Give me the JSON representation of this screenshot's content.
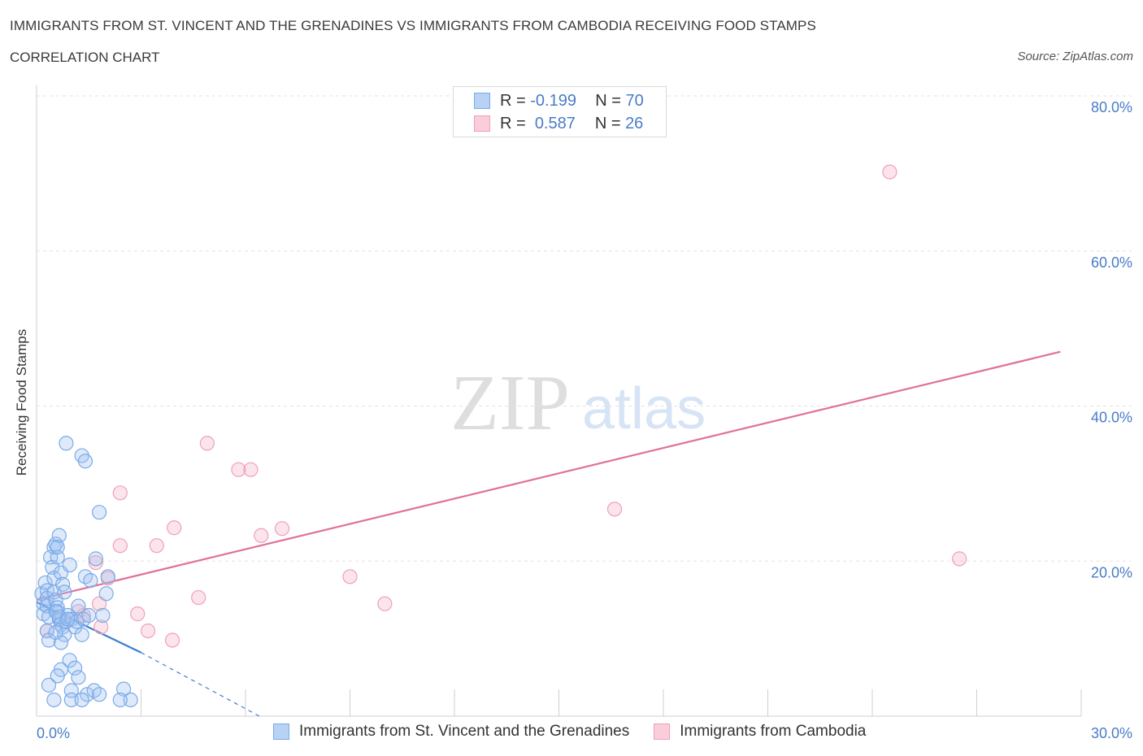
{
  "header": {
    "title": "IMMIGRANTS FROM ST. VINCENT AND THE GRENADINES VS IMMIGRANTS FROM CAMBODIA RECEIVING FOOD STAMPS",
    "subtitle": "CORRELATION CHART",
    "source": "Source: ZipAtlas.com"
  },
  "watermark": {
    "zip": "ZIP",
    "atlas": "atlas"
  },
  "legend": {
    "rows": [
      {
        "r_label": "R =",
        "r_value": "-0.199",
        "n_label": "N =",
        "n_value": "70",
        "color": "#7aaae8"
      },
      {
        "r_label": "R =",
        "r_value": "0.587",
        "n_label": "N =",
        "n_value": "26",
        "color": "#f0a0b8"
      }
    ]
  },
  "bottom_legend": {
    "series1": "Immigrants from St. Vincent and the Grenadines",
    "series2": "Immigrants from Cambodia"
  },
  "chart_data": {
    "type": "scatter",
    "title": "IMMIGRANTS FROM ST. VINCENT AND THE GRENADINES VS IMMIGRANTS FROM CAMBODIA RECEIVING FOOD STAMPS",
    "xlabel": "",
    "ylabel": "Receiving Food Stamps",
    "xlim": [
      0,
      30
    ],
    "ylim": [
      0,
      80
    ],
    "x_tick_labels": [
      "0.0%",
      "30.0%"
    ],
    "y_tick_labels": [
      "20.0%",
      "40.0%",
      "60.0%",
      "80.0%"
    ],
    "y_ticks": [
      20,
      40,
      60,
      80
    ],
    "grid": true,
    "colors": {
      "series1": "#7aaae8",
      "series1_line": "#3d7fd1",
      "series2": "#f0a0b8",
      "series2_line": "#e0709a"
    },
    "series": [
      {
        "name": "Immigrants from St. Vincent and the Grenadines",
        "trend": {
          "x0": 0,
          "y0": 14.7,
          "x1": 3.0,
          "y1": 8.2,
          "dash_x1": 6.4,
          "dash_y1": 0
        },
        "points": [
          [
            0.15,
            15.8
          ],
          [
            0.2,
            14.5
          ],
          [
            0.2,
            13.2
          ],
          [
            0.25,
            17.2
          ],
          [
            0.3,
            16.2
          ],
          [
            0.3,
            15.2
          ],
          [
            0.3,
            14.2
          ],
          [
            0.35,
            12.8
          ],
          [
            0.4,
            20.5
          ],
          [
            0.45,
            19.2
          ],
          [
            0.5,
            17.8
          ],
          [
            0.5,
            16.0
          ],
          [
            0.55,
            15.0
          ],
          [
            0.6,
            14.0
          ],
          [
            0.6,
            13.5
          ],
          [
            0.65,
            12.5
          ],
          [
            0.7,
            11.8
          ],
          [
            0.75,
            11.5
          ],
          [
            0.8,
            10.5
          ],
          [
            0.85,
            12.2
          ],
          [
            0.3,
            11.0
          ],
          [
            0.35,
            9.8
          ],
          [
            0.5,
            21.8
          ],
          [
            0.6,
            20.5
          ],
          [
            0.7,
            18.5
          ],
          [
            0.75,
            17.0
          ],
          [
            0.8,
            16.0
          ],
          [
            0.9,
            13.0
          ],
          [
            1.0,
            12.5
          ],
          [
            1.1,
            11.5
          ],
          [
            1.15,
            12.2
          ],
          [
            0.55,
            22.2
          ],
          [
            0.55,
            13.5
          ],
          [
            0.65,
            12.8
          ],
          [
            1.2,
            14.2
          ],
          [
            1.35,
            12.5
          ],
          [
            1.5,
            13.0
          ],
          [
            1.4,
            18.0
          ],
          [
            1.55,
            17.5
          ],
          [
            1.7,
            20.3
          ],
          [
            1.8,
            26.3
          ],
          [
            1.9,
            13.0
          ],
          [
            2.0,
            15.8
          ],
          [
            2.05,
            18.0
          ],
          [
            1.3,
            33.6
          ],
          [
            0.85,
            35.2
          ],
          [
            1.4,
            32.9
          ],
          [
            0.65,
            23.3
          ],
          [
            0.6,
            21.8
          ],
          [
            0.95,
            19.5
          ],
          [
            0.7,
            9.5
          ],
          [
            0.95,
            7.2
          ],
          [
            0.7,
            6.0
          ],
          [
            1.1,
            6.2
          ],
          [
            0.6,
            5.2
          ],
          [
            1.2,
            5.0
          ],
          [
            0.35,
            4.0
          ],
          [
            1.0,
            3.3
          ],
          [
            1.45,
            2.8
          ],
          [
            1.65,
            3.3
          ],
          [
            1.8,
            2.8
          ],
          [
            2.5,
            3.5
          ],
          [
            2.7,
            2.1
          ],
          [
            0.5,
            2.1
          ],
          [
            1.0,
            2.1
          ],
          [
            1.3,
            2.1
          ],
          [
            2.4,
            2.1
          ],
          [
            1.3,
            10.5
          ],
          [
            0.9,
            12.5
          ],
          [
            0.55,
            10.8
          ]
        ]
      },
      {
        "name": "Immigrants from Cambodia",
        "trend": {
          "x0": 0,
          "y0": 15.0,
          "x1": 29.4,
          "y1": 47.0
        },
        "points": [
          [
            0.3,
            11.0
          ],
          [
            0.7,
            12.5
          ],
          [
            1.2,
            13.5
          ],
          [
            1.35,
            13.0
          ],
          [
            1.7,
            19.8
          ],
          [
            1.8,
            14.5
          ],
          [
            1.85,
            11.5
          ],
          [
            2.05,
            17.8
          ],
          [
            2.4,
            28.8
          ],
          [
            2.4,
            22.0
          ],
          [
            2.9,
            13.2
          ],
          [
            3.2,
            11.0
          ],
          [
            3.45,
            22.0
          ],
          [
            3.9,
            9.8
          ],
          [
            3.95,
            24.3
          ],
          [
            4.65,
            15.3
          ],
          [
            4.9,
            35.2
          ],
          [
            5.8,
            31.8
          ],
          [
            6.15,
            31.8
          ],
          [
            6.45,
            23.3
          ],
          [
            7.05,
            24.2
          ],
          [
            9.0,
            18.0
          ],
          [
            10.0,
            14.5
          ],
          [
            16.6,
            26.7
          ],
          [
            24.5,
            70.2
          ],
          [
            26.5,
            20.3
          ]
        ]
      }
    ]
  }
}
